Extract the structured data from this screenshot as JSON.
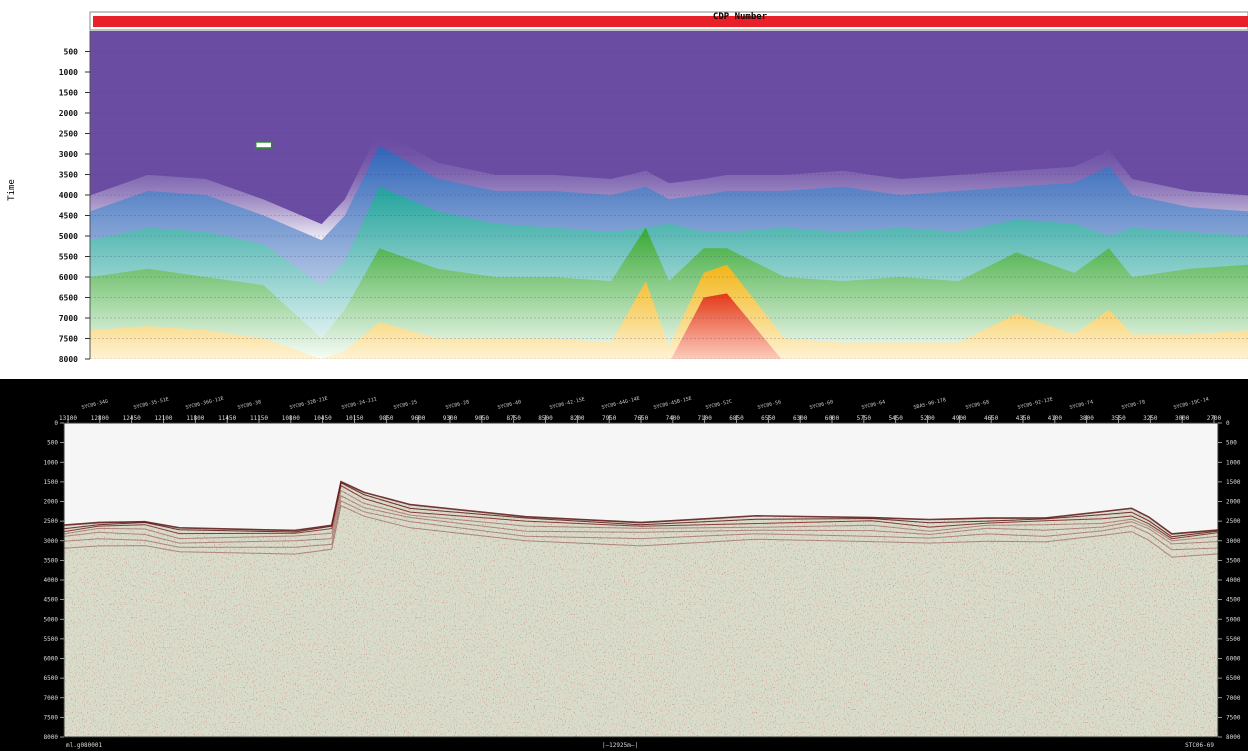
{
  "chart_data": [
    {
      "type": "heatmap",
      "header_label": "CDP Number",
      "ylabel": "Time",
      "y_ticks": [
        500,
        1000,
        1500,
        2000,
        2500,
        3000,
        3500,
        4000,
        4500,
        5000,
        5500,
        6000,
        6500,
        7000,
        7500,
        8000
      ],
      "ylim": [
        0,
        8000
      ],
      "x_fraction": [
        0.0,
        0.05,
        0.1,
        0.15,
        0.2,
        0.22,
        0.25,
        0.3,
        0.35,
        0.4,
        0.45,
        0.48,
        0.5,
        0.53,
        0.55,
        0.6,
        0.65,
        0.7,
        0.75,
        0.8,
        0.85,
        0.88,
        0.9,
        0.95,
        1.0
      ],
      "layers": [
        {
          "color": "#3b6fbf",
          "top": [
            4400,
            3900,
            4000,
            4500,
            5100,
            4500,
            2800,
            3600,
            3900,
            3900,
            4000,
            3800,
            4100,
            4000,
            3900,
            3900,
            3800,
            4000,
            3900,
            3800,
            3700,
            3300,
            4000,
            4300,
            4400
          ]
        },
        {
          "color": "#2aa7a0",
          "top": [
            5100,
            4800,
            4900,
            5200,
            6200,
            5600,
            3800,
            4400,
            4700,
            4800,
            4900,
            4800,
            4700,
            4900,
            4900,
            4800,
            4900,
            4800,
            4900,
            4600,
            4700,
            5000,
            4800,
            4900,
            5000
          ]
        },
        {
          "color": "#3fae3a",
          "top": [
            6000,
            5800,
            6000,
            6200,
            7500,
            6800,
            5300,
            5800,
            6000,
            6000,
            6100,
            4800,
            6100,
            5300,
            5300,
            6000,
            6100,
            6000,
            6100,
            5400,
            5900,
            5300,
            6000,
            5800,
            5700
          ]
        },
        {
          "color": "#f0b41c",
          "top": [
            7300,
            7200,
            7300,
            7500,
            8000,
            7800,
            7100,
            7500,
            7500,
            7500,
            7600,
            6100,
            7700,
            5900,
            5700,
            7500,
            7600,
            7600,
            7600,
            6900,
            7400,
            6800,
            7400,
            7400,
            7300
          ]
        },
        {
          "color": "#e8431e",
          "top": [
            8100,
            8100,
            8100,
            8100,
            8100,
            8100,
            8100,
            8100,
            8100,
            8100,
            8100,
            8100,
            8100,
            6500,
            6400,
            8100,
            8100,
            8100,
            8100,
            8100,
            8100,
            8100,
            8100,
            8100,
            8100
          ]
        }
      ],
      "marker": {
        "x_fraction": 0.15,
        "time": 2780
      }
    },
    {
      "type": "heatmap",
      "cdp_ticks": [
        13100,
        12800,
        12450,
        12100,
        11800,
        11450,
        11150,
        10800,
        10450,
        10150,
        9850,
        9600,
        9300,
        9050,
        8750,
        8500,
        8200,
        7950,
        7650,
        7400,
        7100,
        6850,
        6550,
        6300,
        6000,
        5750,
        5450,
        5200,
        4900,
        4650,
        4350,
        4100,
        3800,
        3550,
        3250,
        3000,
        2700
      ],
      "time_ticks": [
        0,
        500,
        1000,
        1500,
        2000,
        2500,
        3000,
        3500,
        4000,
        4500,
        5000,
        5500,
        6000,
        6500,
        7000,
        7500,
        8000
      ],
      "ylim": [
        0,
        8000
      ],
      "line_labels": [
        "SYC06-34G",
        "SYC06-35-51E",
        "SYC06-36G-11E",
        "SYC06-38",
        "SYC06-32B-21E",
        "SYC06-24-21I",
        "SYC06-25",
        "SYC06-28",
        "SYC06-40",
        "SYC06-42-15E",
        "SYC06-44G-14E",
        "SYC06-45B-15E",
        "SYC06-52C",
        "SYC06-56",
        "SYC06-60",
        "SYC06-64",
        "SBAS-90-178",
        "SYC06-68",
        "SYC06-92-12E",
        "SYC06-74",
        "SYC06-78",
        "SYC06-19C-14"
      ],
      "footer_left": "ml.g080001",
      "footer_center": "|—12925m—|",
      "footer_right": "STC06-69",
      "seafloor": {
        "x_fraction": [
          0.0,
          0.03,
          0.07,
          0.1,
          0.2,
          0.232,
          0.24,
          0.26,
          0.3,
          0.4,
          0.5,
          0.6,
          0.7,
          0.75,
          0.8,
          0.85,
          0.9,
          0.925,
          0.94,
          0.96,
          1.0
        ],
        "time": [
          2600,
          2500,
          2500,
          2700,
          2700,
          2600,
          1500,
          1800,
          2100,
          2400,
          2500,
          2400,
          2400,
          2500,
          2400,
          2400,
          2300,
          2200,
          2400,
          2800,
          2700
        ]
      }
    }
  ]
}
